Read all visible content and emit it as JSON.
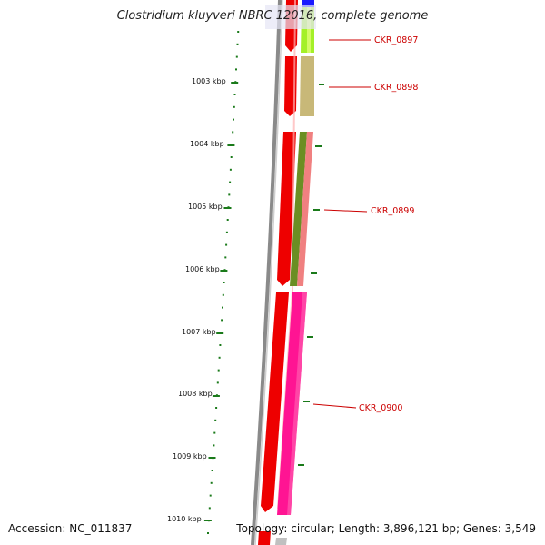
{
  "title": "Clostridium kluyveri NBRC 12016, complete genome",
  "scale_labels": [
    "1003 kbp",
    "1004 kbp",
    "1005 kbp",
    "1006 kbp",
    "1007 kbp",
    "1008 kbp",
    "1009 kbp",
    "1010 kbp"
  ],
  "genes": [
    {
      "id": "CKR_0897",
      "label": "CKR_0897"
    },
    {
      "id": "CKR_0898",
      "label": "CKR_0898"
    },
    {
      "id": "CKR_0899",
      "label": "CKR_0899"
    },
    {
      "id": "CKR_0900",
      "label": "CKR_0900"
    }
  ],
  "footer": {
    "accession_label": "Accession:",
    "accession": "NC_011837",
    "topology_label": "Topology:",
    "topology": "circular",
    "length_label": "Length:",
    "length": "3,896,121 bp",
    "genes_label": "Genes:",
    "genes_count": "3,549"
  },
  "colors": {
    "cds_track": "#ee0000",
    "gene_label": "#cc0000",
    "scale_ticks": "#1a7a1a",
    "backbone": "#8a8a8a",
    "gene_CKR_0897": "#a4f028",
    "gene_CKR_0898": "#c8b878",
    "gene_CKR_0899": "#6b8e23",
    "gene_CKR_0899_alt": "#f08080",
    "gene_CKR_0900": "#ff1493",
    "strand_minus": "#1a1aff"
  }
}
